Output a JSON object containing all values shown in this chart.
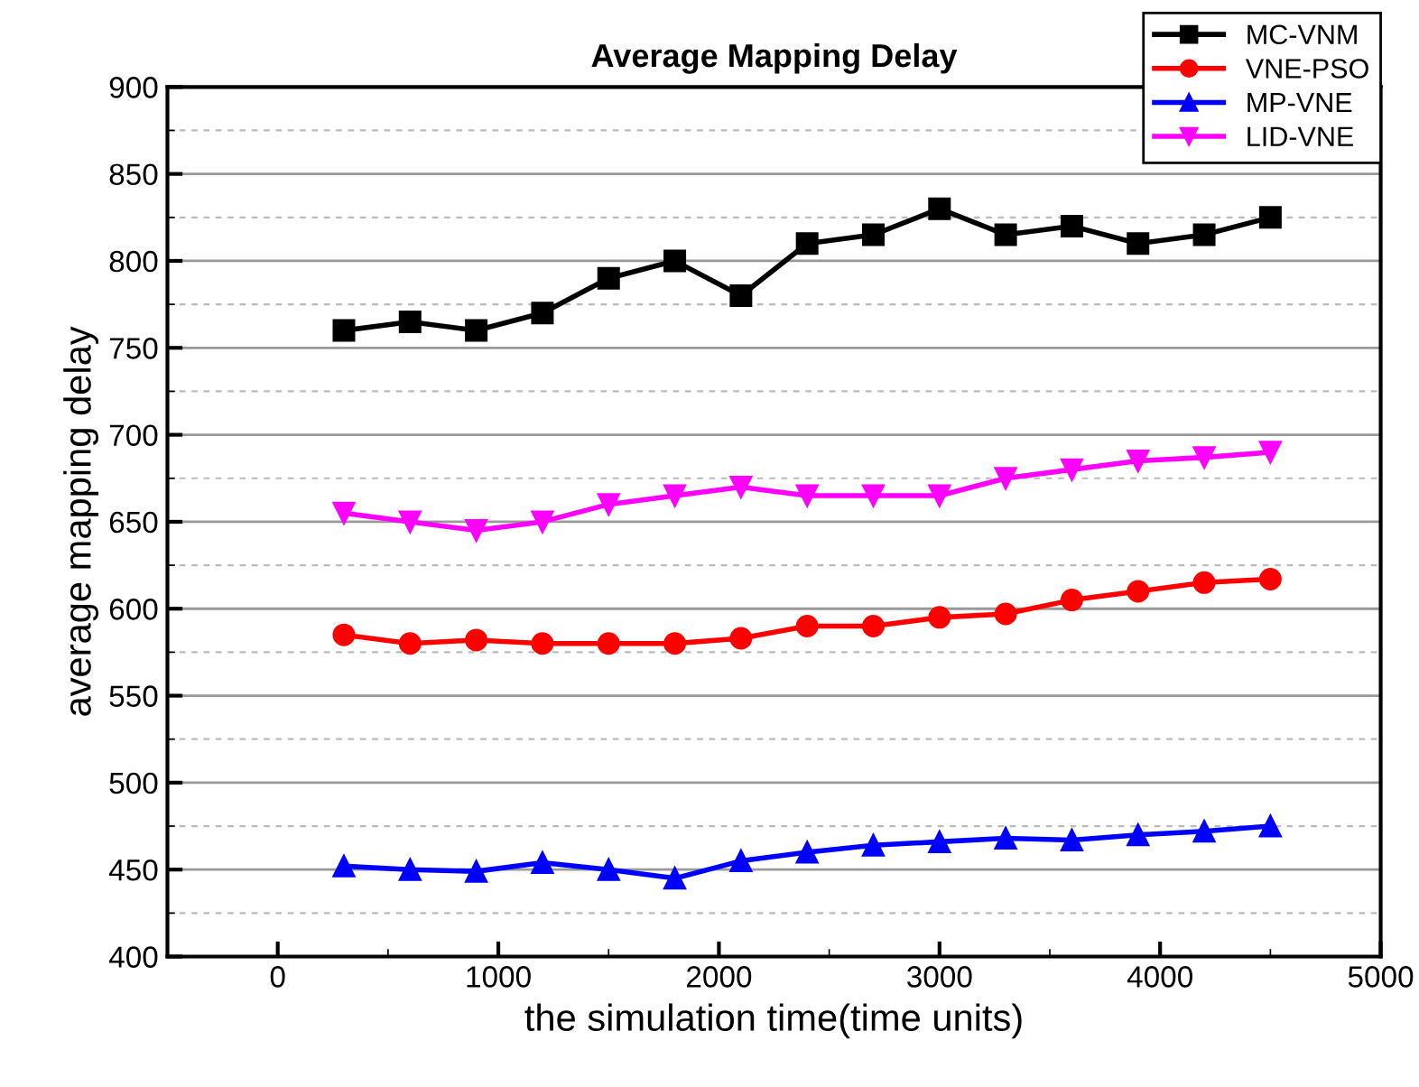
{
  "chart_data": {
    "type": "line",
    "title": "Average Mapping Delay",
    "xlabel": "the simulation time(time units)",
    "ylabel": "average mapping delay",
    "x": [
      300,
      600,
      900,
      1200,
      1500,
      1800,
      2100,
      2400,
      2700,
      3000,
      3300,
      3600,
      3900,
      4200,
      4500
    ],
    "series": [
      {
        "name": "MC-VNM",
        "color": "#000000",
        "marker": "square",
        "values": [
          760,
          765,
          760,
          770,
          790,
          800,
          780,
          810,
          815,
          830,
          815,
          820,
          810,
          815,
          825
        ]
      },
      {
        "name": "VNE-PSO",
        "color": "#ff0000",
        "marker": "circle",
        "values": [
          585,
          580,
          582,
          580,
          580,
          580,
          583,
          590,
          590,
          595,
          597,
          605,
          610,
          615,
          617
        ]
      },
      {
        "name": "MP-VNE",
        "color": "#0000ff",
        "marker": "triangle",
        "values": [
          452,
          450,
          449,
          454,
          450,
          445,
          455,
          460,
          464,
          466,
          468,
          467,
          470,
          472,
          475
        ]
      },
      {
        "name": "LID-VNE",
        "color": "#ff00ff",
        "marker": "triangle_down",
        "values": [
          655,
          650,
          645,
          650,
          660,
          665,
          670,
          665,
          665,
          665,
          675,
          680,
          685,
          687,
          690
        ]
      }
    ],
    "xlim": [
      -500,
      5000
    ],
    "xticks": [
      0,
      1000,
      2000,
      3000,
      4000,
      5000
    ],
    "ylim": [
      400,
      900
    ],
    "yticks": [
      400,
      450,
      500,
      550,
      600,
      650,
      700,
      750,
      800,
      850,
      900
    ],
    "grid": "y",
    "legend": "top right",
    "line_style": "solid"
  }
}
